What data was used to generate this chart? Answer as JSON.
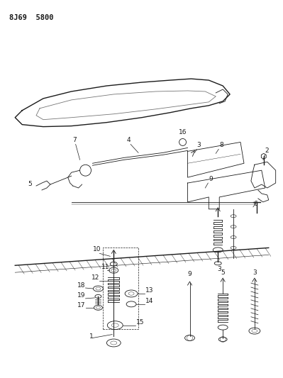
{
  "title": "8J69 5800",
  "background": "#ffffff",
  "lc": "#1a1a1a",
  "fig_width": 3.99,
  "fig_height": 5.33,
  "dpi": 100
}
